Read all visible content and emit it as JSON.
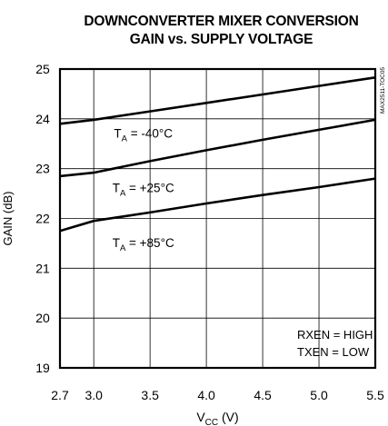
{
  "chart_data": {
    "type": "line",
    "title_line1": "DOWNCONVERTER MIXER CONVERSION",
    "title_line2": "GAIN vs. SUPPLY VOLTAGE",
    "xlabel_main": "V",
    "xlabel_sub": "CC",
    "xlabel_unit": "(V)",
    "ylabel": "GAIN (dB)",
    "xlim": [
      2.7,
      5.5
    ],
    "ylim": [
      19,
      25
    ],
    "x_ticks": [
      2.7,
      3.0,
      3.5,
      4.0,
      4.5,
      5.0,
      5.5
    ],
    "x_tick_labels": [
      "2.7",
      "3.0",
      "3.5",
      "4.0",
      "4.5",
      "5.0",
      "5.5"
    ],
    "y_ticks": [
      19,
      20,
      21,
      22,
      23,
      24,
      25
    ],
    "y_tick_labels": [
      "19",
      "20",
      "21",
      "22",
      "23",
      "24",
      "25"
    ],
    "grid": true,
    "series": [
      {
        "label_main": "T",
        "label_sub": "A",
        "label_rest": " = -40°C",
        "x": [
          2.7,
          3.0,
          3.5,
          4.0,
          4.5,
          5.0,
          5.5
        ],
        "y": [
          23.9,
          23.98,
          24.15,
          24.32,
          24.49,
          24.66,
          24.83
        ]
      },
      {
        "label_main": "T",
        "label_sub": "A",
        "label_rest": " = +25°C",
        "x": [
          2.7,
          3.0,
          3.5,
          4.0,
          4.5,
          5.0,
          5.5
        ],
        "y": [
          22.85,
          22.92,
          23.15,
          23.37,
          23.58,
          23.78,
          23.98
        ]
      },
      {
        "label_main": "T",
        "label_sub": "A",
        "label_rest": " = +85°C",
        "x": [
          2.7,
          3.0,
          3.5,
          4.0,
          4.5,
          5.0,
          5.5
        ],
        "y": [
          21.75,
          21.95,
          22.12,
          22.3,
          22.47,
          22.63,
          22.8
        ]
      }
    ],
    "annotation_lines": [
      "RXEN = HIGH",
      "TXEN = LOW"
    ],
    "figure_code": "MAX2511-TOC05"
  }
}
